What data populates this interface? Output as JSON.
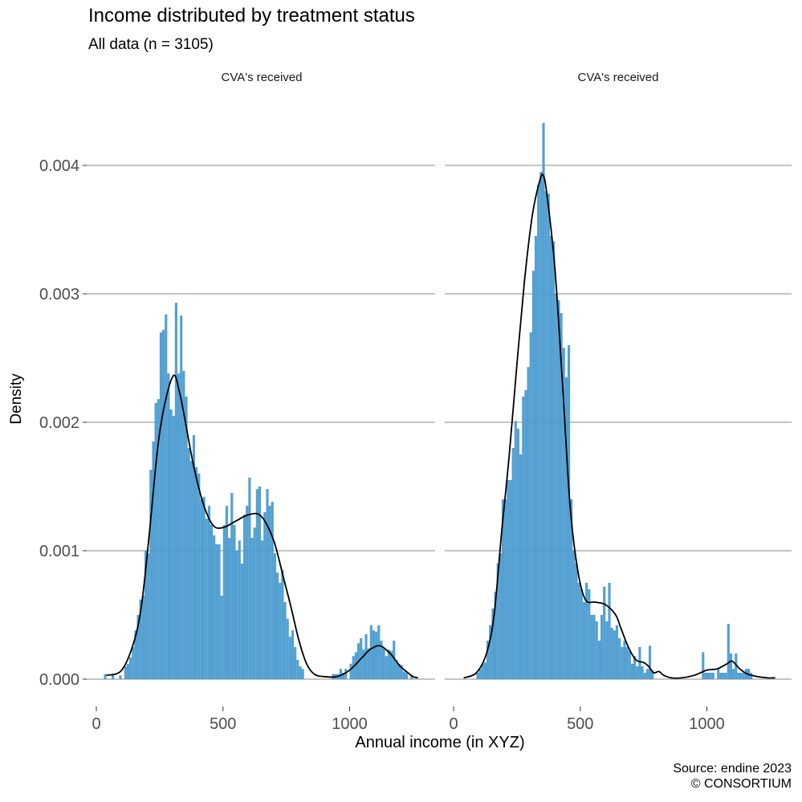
{
  "title": "Income distributed by treatment status",
  "subtitle": "All data (n = 3105)",
  "caption_line1": "Source: endine 2023",
  "caption_line2": "© CONSORTIUM",
  "colors": {
    "bar": "#4a9bd0",
    "density_line": "#000000",
    "grid": "#bdbdbd",
    "tick_text": "#4d4d4d"
  },
  "chart_data": {
    "type": "bar",
    "xlabel": "Annual income (in XYZ)",
    "ylabel": "Density",
    "xlim": [
      -30,
      1320
    ],
    "ylim": [
      -0.00018,
      0.00435
    ],
    "yticks": [
      0.0,
      0.001,
      0.002,
      0.003,
      0.004
    ],
    "ytick_labels": [
      "0.000",
      "0.001",
      "0.002",
      "0.003",
      "0.004"
    ],
    "xticks": [
      0,
      500,
      1000
    ],
    "xtick_labels": [
      "0",
      "500",
      "1000"
    ],
    "grid": "horizontal-major",
    "bin_width": 10,
    "panels": [
      {
        "strip": "CVA's received",
        "bins": [
          [
            35,
            4e-05
          ],
          [
            65,
            4e-05
          ],
          [
            95,
            3e-05
          ],
          [
            115,
            0.0001
          ],
          [
            125,
            0.00012
          ],
          [
            135,
            0.00017
          ],
          [
            145,
            0.00025
          ],
          [
            155,
            0.00038
          ],
          [
            165,
            0.0005
          ],
          [
            175,
            0.00062
          ],
          [
            185,
            0.00065
          ],
          [
            195,
            0.001
          ],
          [
            205,
            0.00098
          ],
          [
            215,
            0.00163
          ],
          [
            225,
            0.00185
          ],
          [
            235,
            0.00215
          ],
          [
            245,
            0.00218
          ],
          [
            255,
            0.0027
          ],
          [
            265,
            0.00272
          ],
          [
            275,
            0.00284
          ],
          [
            285,
            0.00238
          ],
          [
            295,
            0.0021
          ],
          [
            305,
            0.00205
          ],
          [
            315,
            0.00293
          ],
          [
            325,
            0.00238
          ],
          [
            335,
            0.00283
          ],
          [
            345,
            0.0024
          ],
          [
            355,
            0.0022
          ],
          [
            365,
            0.0018
          ],
          [
            375,
            0.0017
          ],
          [
            385,
            0.0019
          ],
          [
            395,
            0.00165
          ],
          [
            405,
            0.0016
          ],
          [
            415,
            0.0014
          ],
          [
            425,
            0.00142
          ],
          [
            435,
            0.00125
          ],
          [
            445,
            0.00135
          ],
          [
            455,
            0.0012
          ],
          [
            465,
            0.00112
          ],
          [
            475,
            0.00105
          ],
          [
            485,
            0.00105
          ],
          [
            495,
            0.00065
          ],
          [
            505,
            0.0012
          ],
          [
            515,
            0.00135
          ],
          [
            525,
            0.0011
          ],
          [
            535,
            0.00145
          ],
          [
            545,
            0.0012
          ],
          [
            555,
            0.001
          ],
          [
            565,
            0.00108
          ],
          [
            575,
            0.0009
          ],
          [
            585,
            0.00128
          ],
          [
            595,
            0.00135
          ],
          [
            605,
            0.00157
          ],
          [
            615,
            0.0011
          ],
          [
            625,
            0.00118
          ],
          [
            635,
            0.00148
          ],
          [
            645,
            0.0015
          ],
          [
            655,
            0.00108
          ],
          [
            665,
            0.0013
          ],
          [
            675,
            0.00148
          ],
          [
            685,
            0.00135
          ],
          [
            695,
            0.00138
          ],
          [
            705,
            0.00098
          ],
          [
            715,
            0.00083
          ],
          [
            725,
            0.00075
          ],
          [
            735,
            0.00085
          ],
          [
            745,
            0.0006
          ],
          [
            755,
            0.00047
          ],
          [
            765,
            0.00033
          ],
          [
            775,
            0.00038
          ],
          [
            785,
            0.00025
          ],
          [
            795,
            0.00015
          ],
          [
            805,
            0.0001
          ],
          [
            815,
            8e-05
          ],
          [
            935,
            4e-05
          ],
          [
            945,
            4e-05
          ],
          [
            955,
            4e-05
          ],
          [
            965,
            8e-05
          ],
          [
            975,
            5e-05
          ],
          [
            985,
            8e-05
          ],
          [
            1005,
            0.00012
          ],
          [
            1015,
            0.00018
          ],
          [
            1025,
            0.00021
          ],
          [
            1035,
            0.00028
          ],
          [
            1045,
            0.00032
          ],
          [
            1055,
            0.00023
          ],
          [
            1065,
            0.00035
          ],
          [
            1075,
            0.00024
          ],
          [
            1085,
            0.00042
          ],
          [
            1095,
            0.00038
          ],
          [
            1105,
            0.00037
          ],
          [
            1115,
            0.00042
          ],
          [
            1125,
            0.0003
          ],
          [
            1135,
            0.00024
          ],
          [
            1145,
            0.00018
          ],
          [
            1155,
            0.00023
          ],
          [
            1165,
            0.00022
          ],
          [
            1175,
            0.0003
          ],
          [
            1185,
            0.00015
          ],
          [
            1195,
            0.00012
          ],
          [
            1205,
            0.00011
          ],
          [
            1215,
            6e-05
          ],
          [
            1225,
            5e-05
          ],
          [
            1245,
            3e-05
          ]
        ],
        "density_x": [
          40,
          100,
          150,
          180,
          210,
          250,
          300,
          330,
          380,
          420,
          460,
          500,
          550,
          600,
          650,
          700,
          740,
          770,
          800,
          830,
          860,
          900,
          950,
          1000,
          1050,
          1080,
          1120,
          1160,
          1180,
          1200,
          1230,
          1250,
          1270
        ],
        "density_y": [
          3e-05,
          7e-05,
          0.0003,
          0.0006,
          0.00115,
          0.00192,
          0.00235,
          0.00222,
          0.0017,
          0.00138,
          0.0012,
          0.00118,
          0.00123,
          0.00128,
          0.00127,
          0.00108,
          0.00078,
          0.00055,
          0.0003,
          0.00012,
          4e-05,
          2e-05,
          2e-05,
          7e-05,
          0.00017,
          0.00023,
          0.00026,
          0.0002,
          0.00015,
          0.0001,
          5e-05,
          2e-05,
          1e-05
        ]
      },
      {
        "strip": "CVA's received",
        "bins": [
          [
            95,
            5e-05
          ],
          [
            105,
            8e-05
          ],
          [
            115,
            0.00012
          ],
          [
            125,
            0.00013
          ],
          [
            135,
            0.0003
          ],
          [
            145,
            0.00042
          ],
          [
            155,
            0.00055
          ],
          [
            165,
            0.00068
          ],
          [
            175,
            0.0009
          ],
          [
            185,
            0.00098
          ],
          [
            195,
            0.0014
          ],
          [
            205,
            0.0014
          ],
          [
            215,
            0.00155
          ],
          [
            225,
            0.00155
          ],
          [
            235,
            0.0018
          ],
          [
            245,
            0.00201
          ],
          [
            255,
            0.00195
          ],
          [
            265,
            0.00175
          ],
          [
            275,
            0.0022
          ],
          [
            285,
            0.00225
          ],
          [
            295,
            0.00243
          ],
          [
            305,
            0.0027
          ],
          [
            315,
            0.00318
          ],
          [
            325,
            0.00345
          ],
          [
            335,
            0.00385
          ],
          [
            345,
            0.00395
          ],
          [
            355,
            0.00433
          ],
          [
            365,
            0.0038
          ],
          [
            375,
            0.00378
          ],
          [
            385,
            0.00345
          ],
          [
            395,
            0.00341
          ],
          [
            405,
            0.003
          ],
          [
            415,
            0.00295
          ],
          [
            425,
            0.00285
          ],
          [
            435,
            0.00258
          ],
          [
            445,
            0.00235
          ],
          [
            455,
            0.0026
          ],
          [
            465,
            0.0014
          ],
          [
            475,
            0.001
          ],
          [
            485,
            0.0009
          ],
          [
            495,
            0.00075
          ],
          [
            505,
            0.0007
          ],
          [
            515,
            0.0006
          ],
          [
            525,
            0.00075
          ],
          [
            535,
            0.0007
          ],
          [
            545,
            0.0005
          ],
          [
            555,
            0.0005
          ],
          [
            565,
            0.00045
          ],
          [
            575,
            0.0003
          ],
          [
            585,
            0.0005
          ],
          [
            595,
            0.00072
          ],
          [
            605,
            0.00045
          ],
          [
            615,
            0.00075
          ],
          [
            625,
            0.0004
          ],
          [
            635,
            0.00038
          ],
          [
            645,
            0.00042
          ],
          [
            655,
            0.00032
          ],
          [
            665,
            0.00025
          ],
          [
            675,
            0.0003
          ],
          [
            685,
            0.00025
          ],
          [
            695,
            0.00022
          ],
          [
            705,
            0.00012
          ],
          [
            715,
            0.00018
          ],
          [
            725,
            0.0001
          ],
          [
            735,
            0.00025
          ],
          [
            745,
            0.0001
          ],
          [
            755,
            5e-05
          ],
          [
            765,
            8e-05
          ],
          [
            775,
            0.00026
          ],
          [
            785,
            7e-05
          ],
          [
            985,
            0.00021
          ],
          [
            995,
            5e-05
          ],
          [
            1005,
            5e-05
          ],
          [
            1015,
            5e-05
          ],
          [
            1025,
            5e-05
          ],
          [
            1045,
            8e-05
          ],
          [
            1055,
            5e-05
          ],
          [
            1065,
            5e-05
          ],
          [
            1075,
            5e-05
          ],
          [
            1085,
            0.00043
          ],
          [
            1095,
            0.0002
          ],
          [
            1105,
            8e-05
          ],
          [
            1115,
            0.0002
          ],
          [
            1125,
            5e-05
          ],
          [
            1135,
            5e-05
          ],
          [
            1145,
            5e-05
          ],
          [
            1155,
            8e-05
          ],
          [
            1165,
            8e-05
          ],
          [
            1175,
            5e-05
          ]
        ],
        "density_x": [
          40,
          90,
          130,
          160,
          190,
          220,
          250,
          280,
          310,
          340,
          355,
          370,
          400,
          430,
          460,
          490,
          520,
          560,
          600,
          640,
          660,
          690,
          720,
          750,
          770,
          790,
          810,
          830,
          860,
          900,
          950,
          1000,
          1040,
          1080,
          1100,
          1130,
          1160,
          1200,
          1240,
          1270
        ],
        "density_y": [
          1e-05,
          5e-05,
          0.0002,
          0.0005,
          0.00115,
          0.00175,
          0.00245,
          0.0031,
          0.0036,
          0.00388,
          0.00392,
          0.00375,
          0.0032,
          0.0023,
          0.00135,
          0.00085,
          0.00062,
          0.0006,
          0.00058,
          0.0005,
          0.0004,
          0.00025,
          0.00015,
          0.00013,
          0.0001,
          5e-05,
          6e-05,
          3e-05,
          1e-05,
          1e-05,
          3e-05,
          7e-05,
          8e-05,
          0.00012,
          0.00014,
          8e-05,
          4e-05,
          2e-05,
          1e-05,
          1e-05
        ]
      }
    ]
  }
}
